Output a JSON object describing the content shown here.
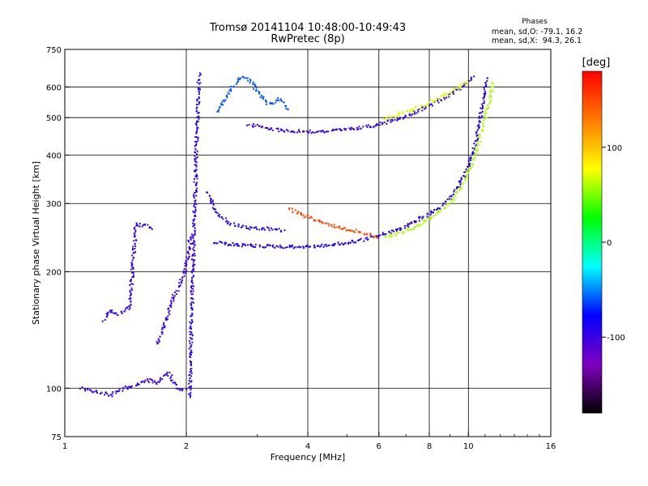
{
  "header": {
    "title_line1": "Tromsø 20141104 10:48:00-10:49:43",
    "title_line2": "RwPretec (8p)",
    "phases_title": "Phases",
    "phase_o": "mean, sd,O: -79.1, 16.2",
    "phase_x": "mean, sd,X:  94.3, 26.1"
  },
  "colors": {
    "grid": "#000000",
    "colorbar_stops": [
      "#ff0000",
      "#ff7a00",
      "#ffff00",
      "#00ff00",
      "#00ffff",
      "#0000ff",
      "#8000c0",
      "#000000"
    ]
  },
  "chart_data": {
    "type": "scatter",
    "xlabel": "Frequency [MHz]",
    "ylabel": "Stationary phase Virtual Height [km]",
    "x_scale": "log",
    "y_scale": "log",
    "xlim": [
      1,
      16
    ],
    "ylim": [
      75,
      750
    ],
    "x_ticks": [
      1,
      2,
      4,
      6,
      8,
      10,
      16
    ],
    "x_tick_labels": [
      "1",
      "2",
      "4",
      "6",
      "8",
      "10",
      "16"
    ],
    "y_ticks": [
      75,
      100,
      200,
      300,
      400,
      500,
      600,
      750
    ],
    "y_tick_labels": [
      "75",
      "100",
      "200",
      "300",
      "400",
      "500",
      "600",
      "750"
    ],
    "colorbar": {
      "label": "[deg]",
      "range": [
        -180,
        180
      ],
      "ticks": [
        100,
        0,
        -100
      ],
      "tick_labels": [
        "100",
        "0",
        "-100"
      ]
    },
    "traces": [
      {
        "name": "",
        "phase_deg": -95,
        "points": [
          [
            2.04,
            95
          ],
          [
            2.05,
            120
          ],
          [
            2.06,
            150
          ],
          [
            2.07,
            180
          ],
          [
            2.08,
            210
          ],
          [
            2.09,
            250
          ],
          [
            2.1,
            300
          ],
          [
            2.11,
            350
          ],
          [
            2.12,
            420
          ],
          [
            2.13,
            500
          ],
          [
            2.14,
            560
          ],
          [
            2.15,
            620
          ],
          [
            2.16,
            650
          ]
        ]
      },
      {
        "name": "",
        "phase_deg": -100,
        "points": [
          [
            1.7,
            130
          ],
          [
            1.78,
            150
          ],
          [
            1.85,
            170
          ],
          [
            1.92,
            185
          ],
          [
            1.98,
            200
          ],
          [
            2.02,
            220
          ],
          [
            2.05,
            250
          ]
        ]
      },
      {
        "name": "",
        "phase_deg": -95,
        "points": [
          [
            2.25,
            320
          ],
          [
            2.4,
            280
          ],
          [
            2.6,
            265
          ],
          [
            2.9,
            258
          ],
          [
            3.2,
            258
          ],
          [
            3.5,
            255
          ]
        ]
      },
      {
        "name": "",
        "phase_deg": -92,
        "points": [
          [
            2.35,
            238
          ],
          [
            2.6,
            235
          ],
          [
            3.0,
            233
          ],
          [
            3.5,
            232
          ],
          [
            4.0,
            232
          ],
          [
            4.5,
            234
          ],
          [
            5.0,
            237
          ],
          [
            5.5,
            242
          ],
          [
            6.0,
            248
          ],
          [
            6.5,
            254
          ],
          [
            7.0,
            262
          ],
          [
            7.5,
            272
          ],
          [
            8.0,
            282
          ],
          [
            8.5,
            292
          ],
          [
            9.0,
            310
          ],
          [
            9.5,
            335
          ],
          [
            10.0,
            370
          ],
          [
            10.3,
            410
          ],
          [
            10.6,
            470
          ],
          [
            10.8,
            530
          ],
          [
            11.0,
            600
          ],
          [
            11.1,
            640
          ]
        ]
      },
      {
        "name": "",
        "phase_deg": 60,
        "points": [
          [
            6.2,
            245
          ],
          [
            6.8,
            252
          ],
          [
            7.5,
            263
          ],
          [
            8.2,
            278
          ],
          [
            9.0,
            300
          ],
          [
            9.6,
            330
          ],
          [
            10.2,
            380
          ],
          [
            10.6,
            430
          ],
          [
            11.0,
            500
          ],
          [
            11.3,
            560
          ],
          [
            11.5,
            620
          ]
        ]
      },
      {
        "name": "",
        "phase_deg": 150,
        "points": [
          [
            3.6,
            290
          ],
          [
            3.9,
            280
          ],
          [
            4.2,
            272
          ],
          [
            4.5,
            265
          ],
          [
            4.8,
            260
          ],
          [
            5.2,
            255
          ],
          [
            5.6,
            250
          ],
          [
            6.0,
            246
          ]
        ]
      },
      {
        "name": "",
        "phase_deg": -100,
        "points": [
          [
            2.85,
            480
          ],
          [
            3.2,
            468
          ],
          [
            3.6,
            462
          ],
          [
            4.0,
            460
          ],
          [
            4.5,
            461
          ],
          [
            5.0,
            465
          ],
          [
            5.5,
            472
          ],
          [
            6.0,
            480
          ],
          [
            6.5,
            492
          ],
          [
            7.0,
            505
          ],
          [
            7.5,
            520
          ],
          [
            8.0,
            538
          ],
          [
            8.5,
            555
          ],
          [
            9.0,
            575
          ],
          [
            9.5,
            595
          ],
          [
            10.0,
            620
          ],
          [
            10.3,
            640
          ]
        ]
      },
      {
        "name": "",
        "phase_deg": 70,
        "points": [
          [
            6.2,
            495
          ],
          [
            6.8,
            510
          ],
          [
            7.5,
            530
          ],
          [
            8.3,
            555
          ],
          [
            9.0,
            580
          ],
          [
            9.6,
            605
          ],
          [
            10.0,
            625
          ]
        ]
      },
      {
        "name": "",
        "phase_deg": -60,
        "points": [
          [
            2.4,
            520
          ],
          [
            2.5,
            560
          ],
          [
            2.6,
            600
          ],
          [
            2.75,
            640
          ],
          [
            2.9,
            620
          ],
          [
            3.0,
            580
          ],
          [
            3.2,
            540
          ],
          [
            3.4,
            560
          ],
          [
            3.6,
            520
          ]
        ]
      },
      {
        "name": "",
        "phase_deg": -100,
        "points": [
          [
            1.1,
            100
          ],
          [
            1.2,
            98
          ],
          [
            1.3,
            96
          ],
          [
            1.4,
            100
          ],
          [
            1.5,
            102
          ],
          [
            1.6,
            105
          ],
          [
            1.7,
            103
          ],
          [
            1.8,
            110
          ],
          [
            1.9,
            100
          ],
          [
            2.0,
            98
          ]
        ]
      },
      {
        "name": "",
        "phase_deg": -100,
        "points": [
          [
            1.25,
            150
          ],
          [
            1.3,
            160
          ],
          [
            1.35,
            155
          ],
          [
            1.45,
            162
          ],
          [
            1.5,
            265
          ],
          [
            1.6,
            262
          ],
          [
            1.65,
            255
          ]
        ]
      }
    ]
  }
}
